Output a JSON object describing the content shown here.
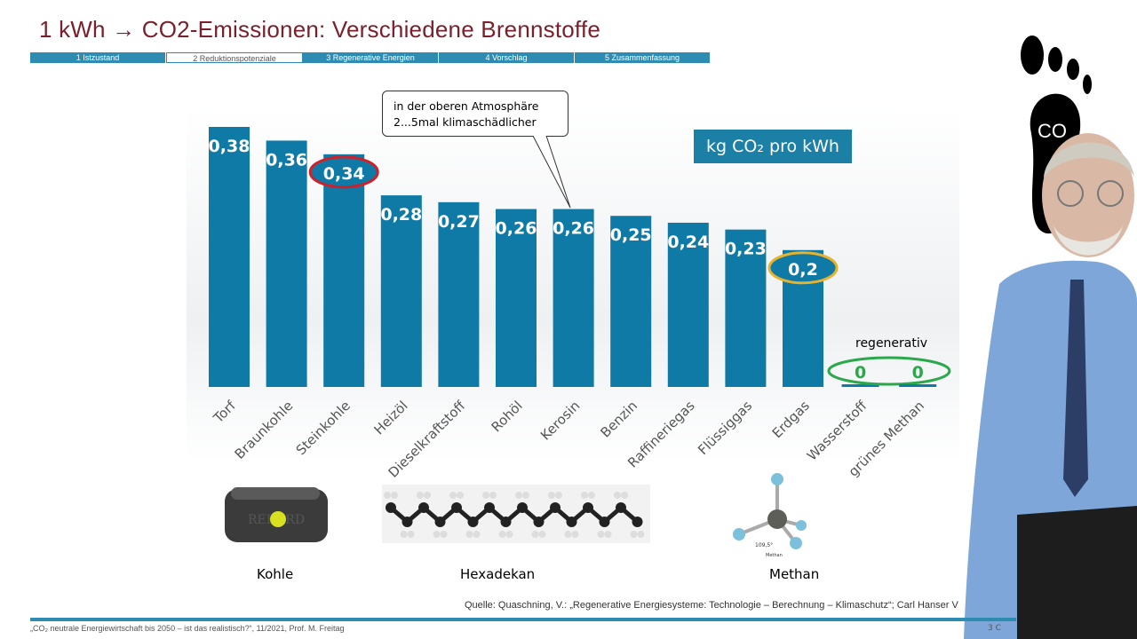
{
  "slide": {
    "title": "1 kWh → CO2-Emissionen: Verschiedene Brennstoffe",
    "tabs": [
      {
        "label": "1 Istzustand"
      },
      {
        "label": "2 Reduktionspotenziale",
        "active": true
      },
      {
        "label": "3 Regenerative Energien"
      },
      {
        "label": "4 Vorschlag"
      },
      {
        "label": "5 Zusammenfassung"
      }
    ],
    "callout_line1": "in der oberen Atmosphäre",
    "callout_line2": "2...5mal klimaschädlicher",
    "regenerative_label": "regenerativ",
    "captions": [
      "Kohle",
      "Hexadekan",
      "Methan"
    ],
    "coal_text": "REKORD",
    "methane_angle": "109,5°",
    "methane_small": "Methan",
    "footprint_text": "CO",
    "source": "Quelle: Quaschning, V.: „Regenerative Energiesysteme: Technologie – Berechnung – Klimaschutz“; Carl Hanser V",
    "footer": "„CO₂ neutrale Energiewirtschaft bis 2050 – ist das realistisch?“, 11/2021, Prof. M. Freitag",
    "page": "3 C"
  },
  "chart_data": {
    "type": "bar",
    "unit_label": "kg CO₂ pro kWh",
    "categories": [
      "Torf",
      "Braunkohle",
      "Steinkohle",
      "Heizöl",
      "Dieselkraftstoff",
      "Rohöl",
      "Kerosin",
      "Benzin",
      "Raffineriegas",
      "Flüssiggas",
      "Erdgas",
      "Wasserstoff",
      "grünes Methan"
    ],
    "values": [
      0.38,
      0.36,
      0.34,
      0.28,
      0.27,
      0.26,
      0.26,
      0.25,
      0.24,
      0.23,
      0.2,
      0,
      0
    ],
    "value_labels": [
      "0,38",
      "0,36",
      "0,34",
      "0,28",
      "0,27",
      "0,26",
      "0,26",
      "0,25",
      "0,24",
      "0,23",
      "0,2",
      "0",
      "0"
    ],
    "highlight": [
      {
        "index": 2,
        "color": "#d0202a"
      },
      {
        "index": 10,
        "color": "#e8b22a"
      },
      {
        "index": 11,
        "color": "#2aa84a"
      },
      {
        "index": 12,
        "color": "#2aa84a"
      }
    ],
    "bar_color": "#0e7aa5",
    "ylim": [
      0,
      0.4
    ],
    "grid": false
  }
}
